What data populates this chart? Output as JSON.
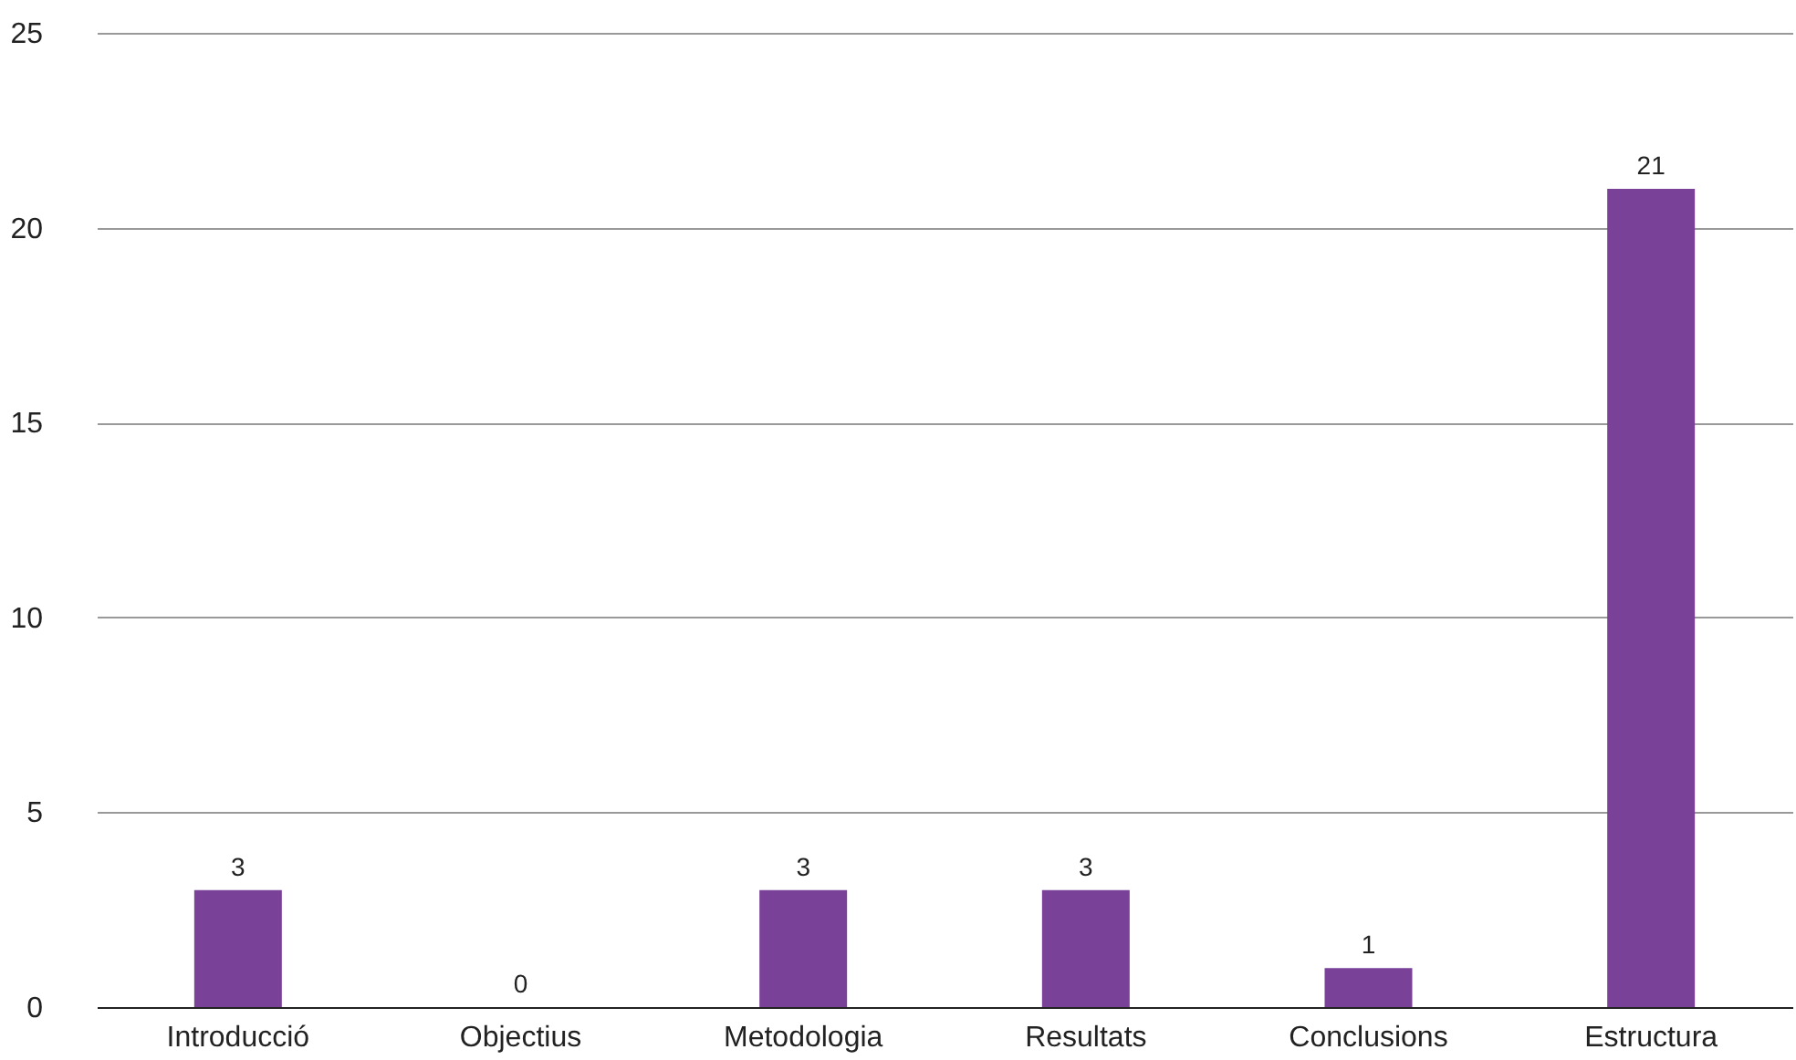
{
  "chart_data": {
    "type": "bar",
    "categories": [
      "Introducció",
      "Objectius",
      "Metodologia",
      "Resultats",
      "Conclusions",
      "Estructura"
    ],
    "values": [
      3,
      0,
      3,
      3,
      1,
      21
    ],
    "color": "#7a4199",
    "ylim": [
      0,
      25
    ],
    "yticks": [
      0,
      5,
      10,
      15,
      20,
      25
    ],
    "grid": "y",
    "data_labels": true
  }
}
